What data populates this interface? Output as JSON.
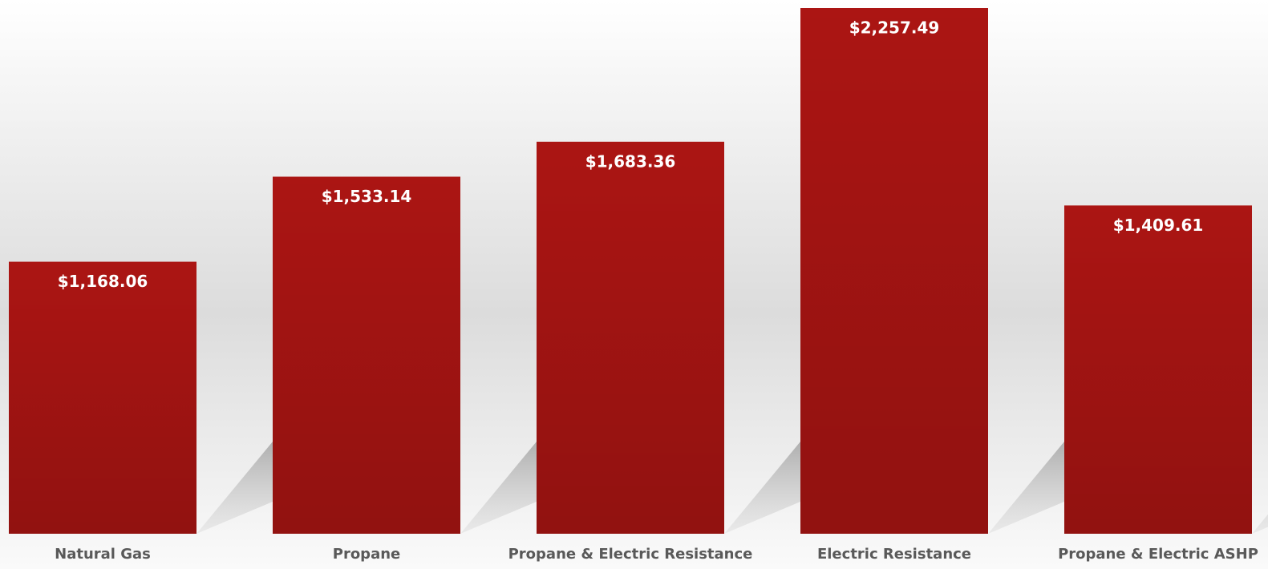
{
  "chart_data": {
    "type": "bar",
    "categories": [
      "Natural Gas",
      "Propane",
      "Propane & Electric Resistance",
      "Electric Resistance",
      "Propane & Electric ASHP"
    ],
    "values": [
      1168.06,
      1533.14,
      1683.36,
      2257.49,
      1409.61
    ],
    "value_labels": [
      "$1,168.06",
      "$1,533.14",
      "$1,683.36",
      "$2,257.49",
      "$1,409.61"
    ],
    "color": "#ab1513"
  }
}
